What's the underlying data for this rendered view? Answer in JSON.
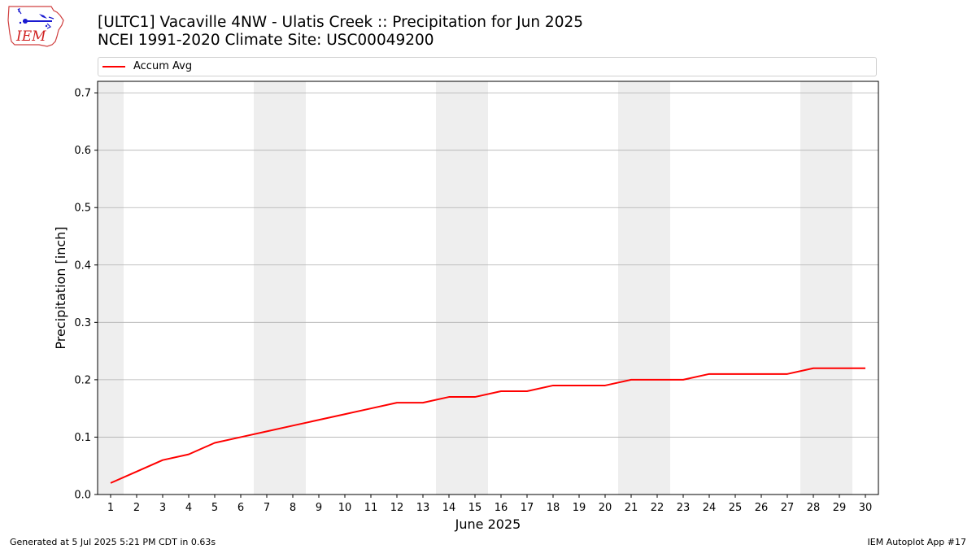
{
  "header": {
    "logo_text": "IEM",
    "title_line1": "[ULTC1] Vacaville 4NW - Ulatis Creek :: Precipitation for Jun 2025",
    "title_line2": "NCEI 1991-2020 Climate Site: USC00049200"
  },
  "footer": {
    "left": "Generated at 5 Jul 2025 5:21 PM CDT in 0.63s",
    "right": "IEM Autoplot App #17"
  },
  "colors": {
    "line": "#ff0000",
    "weekend_shade": "#eeeeee",
    "grid": "#b0b0b0"
  },
  "chart_data": {
    "type": "line",
    "xlabel": "June 2025",
    "ylabel": "Precipitation [inch]",
    "x": [
      1,
      2,
      3,
      4,
      5,
      6,
      7,
      8,
      9,
      10,
      11,
      12,
      13,
      14,
      15,
      16,
      17,
      18,
      19,
      20,
      21,
      22,
      23,
      24,
      25,
      26,
      27,
      28,
      29,
      30
    ],
    "xlim": [
      0.5,
      30.5
    ],
    "ylim": [
      0,
      0.72
    ],
    "yticks": [
      0.0,
      0.1,
      0.2,
      0.3,
      0.4,
      0.5,
      0.6,
      0.7
    ],
    "ytick_labels": [
      "0.0",
      "0.1",
      "0.2",
      "0.3",
      "0.4",
      "0.5",
      "0.6",
      "0.7"
    ],
    "xtick_labels": [
      "1",
      "2",
      "3",
      "4",
      "5",
      "6",
      "7",
      "8",
      "9",
      "10",
      "11",
      "12",
      "13",
      "14",
      "15",
      "16",
      "17",
      "18",
      "19",
      "20",
      "21",
      "22",
      "23",
      "24",
      "25",
      "26",
      "27",
      "28",
      "29",
      "30"
    ],
    "grid": "horizontal",
    "legend_position": "top",
    "shaded_days": [
      1,
      7,
      8,
      14,
      15,
      21,
      22,
      28,
      29
    ],
    "series": [
      {
        "name": "Accum Avg",
        "values": [
          0.02,
          0.04,
          0.06,
          0.07,
          0.09,
          0.1,
          0.11,
          0.12,
          0.13,
          0.14,
          0.15,
          0.16,
          0.16,
          0.17,
          0.17,
          0.18,
          0.18,
          0.19,
          0.19,
          0.19,
          0.2,
          0.2,
          0.2,
          0.21,
          0.21,
          0.21,
          0.21,
          0.22,
          0.22,
          0.22
        ]
      }
    ]
  }
}
